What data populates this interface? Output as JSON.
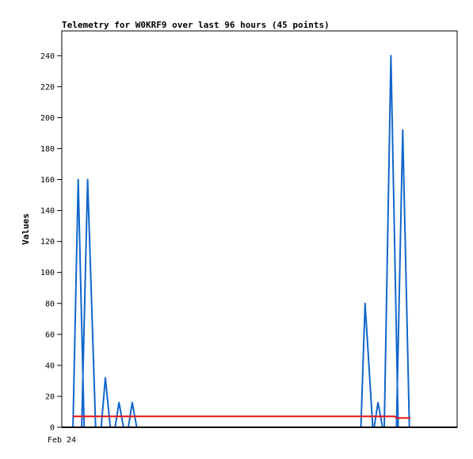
{
  "chart_data": {
    "type": "line",
    "title": "Telemetry for W0KRF9 over last 96 hours (45 points)",
    "ylabel": "Values",
    "xlabel": "",
    "x_tick_labels": [
      "Feb 24"
    ],
    "ylim": [
      0,
      256
    ],
    "y_ticks": [
      0,
      20,
      40,
      60,
      80,
      100,
      120,
      140,
      160,
      180,
      200,
      220,
      240
    ],
    "xlim": [
      0,
      1
    ],
    "grid": false,
    "legend": "none",
    "series": [
      {
        "color": "#1166cc",
        "points": [
          [
            0.032,
            0
          ],
          [
            0.047,
            160
          ],
          [
            0.064,
            0
          ],
          [
            0.057,
            0
          ],
          [
            0.074,
            160
          ],
          [
            0.097,
            0
          ],
          [
            0.113,
            0
          ],
          [
            0.125,
            32
          ],
          [
            0.139,
            0
          ],
          [
            0.153,
            0
          ],
          [
            0.164,
            16
          ],
          [
            0.177,
            0
          ],
          [
            0.191,
            0
          ],
          [
            0.202,
            16
          ],
          [
            0.215,
            0
          ],
          [
            0.858,
            0
          ],
          [
            0.87,
            80
          ],
          [
            0.892,
            0
          ],
          [
            0.896,
            0
          ],
          [
            0.907,
            16
          ],
          [
            0.92,
            0
          ],
          [
            0.925,
            0
          ],
          [
            0.944,
            240
          ],
          [
            0.965,
            0
          ],
          [
            0.96,
            0
          ],
          [
            0.978,
            192
          ],
          [
            0.997,
            0
          ]
        ]
      },
      {
        "color": "#ee1111",
        "points": [
          [
            0.032,
            7
          ],
          [
            0.955,
            7
          ],
          [
            0.96,
            6
          ],
          [
            0.99,
            6
          ],
          [
            1.0,
            6
          ]
        ]
      }
    ]
  }
}
